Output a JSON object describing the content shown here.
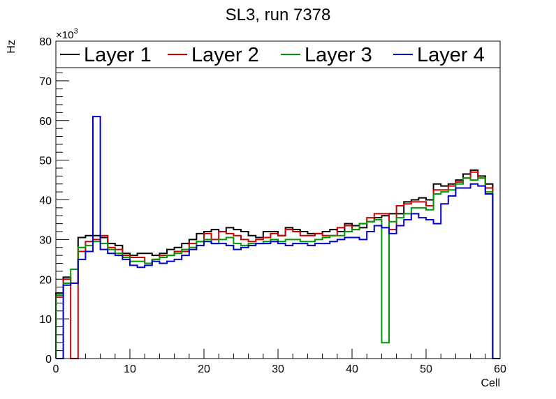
{
  "chart_data": {
    "type": "histogram-step",
    "title": "SL3, run 7378",
    "xlabel": "Cell",
    "ylabel": "Hz",
    "y_multiplier_label": "×10",
    "y_multiplier_exp": "3",
    "xlim": [
      0,
      60
    ],
    "ylim": [
      0,
      80
    ],
    "y_unit_scale": 1000,
    "x_ticks": [
      0,
      10,
      20,
      30,
      40,
      50,
      60
    ],
    "y_ticks": [
      0,
      10,
      20,
      30,
      40,
      50,
      60,
      70,
      80
    ],
    "bin_width": 1,
    "legend_position": "top",
    "series": [
      {
        "name": "Layer 1",
        "color": "#000000",
        "values": [
          16.5,
          20.5,
          19.0,
          30.5,
          31.0,
          31.0,
          30.5,
          29.0,
          28.5,
          26.5,
          26.0,
          26.5,
          26.5,
          26.0,
          26.5,
          27.5,
          28.0,
          29.0,
          30.0,
          31.5,
          32.0,
          32.5,
          32.0,
          33.0,
          32.5,
          32.0,
          31.0,
          30.5,
          32.0,
          32.0,
          31.0,
          33.0,
          32.5,
          32.0,
          31.5,
          31.5,
          32.0,
          32.5,
          32.0,
          34.0,
          33.5,
          33.0,
          34.5,
          35.5,
          36.0,
          36.5,
          36.5,
          39.5,
          40.0,
          40.5,
          40.0,
          44.0,
          43.5,
          44.0,
          45.0,
          46.5,
          47.5,
          46.0,
          44.0,
          0
        ]
      },
      {
        "name": "Layer 2",
        "color": "#cc0000",
        "values": [
          15.5,
          20.0,
          0,
          27.0,
          29.5,
          30.0,
          31.0,
          28.0,
          27.5,
          26.0,
          25.5,
          25.5,
          24.0,
          25.0,
          26.0,
          26.0,
          27.0,
          27.0,
          29.0,
          29.5,
          31.5,
          30.0,
          32.0,
          31.5,
          31.0,
          30.0,
          29.5,
          30.0,
          30.5,
          31.5,
          31.0,
          32.5,
          32.0,
          31.0,
          31.0,
          31.5,
          31.0,
          31.0,
          33.0,
          33.5,
          32.5,
          34.0,
          35.5,
          36.5,
          36.5,
          32.5,
          38.5,
          39.0,
          39.5,
          39.5,
          38.5,
          42.5,
          42.5,
          43.5,
          44.5,
          45.5,
          47.0,
          45.5,
          43.0,
          0
        ]
      },
      {
        "name": "Layer 3",
        "color": "#009900",
        "values": [
          16.0,
          19.0,
          22.5,
          28.0,
          28.5,
          29.5,
          29.0,
          27.5,
          26.5,
          25.5,
          24.5,
          24.5,
          24.0,
          25.0,
          25.5,
          26.0,
          26.5,
          27.5,
          28.0,
          29.5,
          30.0,
          29.0,
          30.0,
          30.5,
          29.0,
          28.5,
          29.0,
          29.0,
          29.5,
          30.0,
          29.5,
          30.0,
          30.0,
          29.5,
          29.5,
          30.0,
          30.5,
          31.0,
          31.0,
          32.0,
          32.5,
          34.0,
          34.5,
          35.0,
          4.0,
          34.5,
          35.5,
          36.5,
          38.0,
          38.0,
          37.5,
          41.5,
          42.0,
          42.5,
          44.0,
          45.5,
          45.0,
          45.5,
          42.0,
          0
        ]
      },
      {
        "name": "Layer 4",
        "color": "#0000cc",
        "values": [
          0,
          18.5,
          19.0,
          25.0,
          27.0,
          61.0,
          27.5,
          26.5,
          26.0,
          25.0,
          23.5,
          23.0,
          23.5,
          24.5,
          24.0,
          24.5,
          25.0,
          26.0,
          27.5,
          28.5,
          29.5,
          29.0,
          29.0,
          28.5,
          27.5,
          28.0,
          28.5,
          29.0,
          29.0,
          29.5,
          29.0,
          28.5,
          29.0,
          29.0,
          28.5,
          29.0,
          29.0,
          29.5,
          30.0,
          30.5,
          30.5,
          30.0,
          32.0,
          33.5,
          33.0,
          31.5,
          33.5,
          35.0,
          36.5,
          35.5,
          35.0,
          34.0,
          39.0,
          41.0,
          43.0,
          43.0,
          44.0,
          43.5,
          41.5,
          0
        ]
      }
    ]
  }
}
